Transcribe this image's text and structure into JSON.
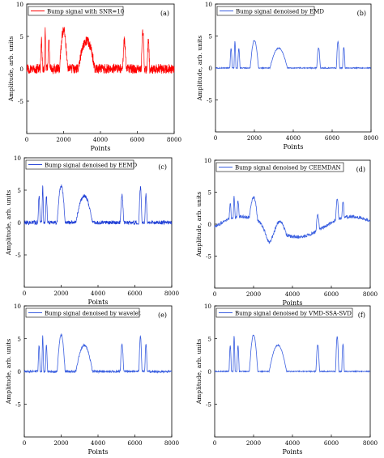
{
  "figure": {
    "panels": [
      {
        "tag": "(a)",
        "legend": "Bump signal with SNR=10",
        "ylabel": "Amplitude, arb. units",
        "xlabel": "Points",
        "color": "#ff0000",
        "variant": "noisy_red"
      },
      {
        "tag": "(b)",
        "legend": "Bump signal denoised by EMD",
        "ylabel": "Amplitude, arb. units",
        "xlabel": "Points",
        "color": "#3a5fe0",
        "variant": "emd"
      },
      {
        "tag": "(c)",
        "legend": "Bump signal denoised by EEMD",
        "ylabel": "Amplitude, arb. units",
        "xlabel": "Points",
        "color": "#1f3fd6",
        "variant": "eemd"
      },
      {
        "tag": "(d)",
        "legend": "Bump signal denoised by CEEMDAN",
        "ylabel": "Amplitude, arb. units",
        "xlabel": "Points",
        "color": "#3a5fe0",
        "variant": "ceemdan"
      },
      {
        "tag": "(e)",
        "legend": "Bump signal denoised by wavelet",
        "ylabel": "Amplitude, arb. units",
        "xlabel": "Points",
        "color": "#3a5fe0",
        "variant": "wavelet"
      },
      {
        "tag": "(f)",
        "legend": "Bump signal denoised by VMD-SSA-SVD",
        "ylabel": "Amplitude, arb. units",
        "xlabel": "Points",
        "color": "#3a5fe0",
        "variant": "vmd"
      }
    ]
  },
  "chart_data": [
    {
      "type": "line",
      "xlabel": "Points",
      "ylabel": "Amplitude, arb. units",
      "xlim": [
        0,
        8000
      ],
      "ylim": [
        -10,
        10
      ],
      "xticks": [
        "0",
        "2000",
        "4000",
        "6000",
        "8000"
      ],
      "yticks": [
        "10",
        "5",
        "0",
        "-5"
      ],
      "series": [
        {
          "name": "Bump signal with SNR=10",
          "x": [
            0,
            800,
            1000,
            1200,
            2000,
            3300,
            5300,
            6300,
            6600,
            8000
          ],
          "y": [
            0.2,
            4.2,
            5.8,
            4.2,
            6.0,
            4.2,
            4.4,
            5.7,
            4.5,
            0.2
          ]
        }
      ]
    },
    {
      "type": "line",
      "xlabel": "Points",
      "ylabel": "Amplitude, arb. units",
      "xlim": [
        0,
        8000
      ],
      "ylim": [
        -10,
        10
      ],
      "xticks": [
        "0",
        "2000",
        "4000",
        "6000",
        "8000"
      ],
      "yticks": [
        "10",
        "5",
        "0",
        "-5"
      ],
      "series": [
        {
          "name": "Bump signal denoised by EMD",
          "x": [
            0,
            800,
            1000,
            1200,
            2000,
            3300,
            5300,
            6300,
            6600,
            8000
          ],
          "y": [
            0.0,
            3.8,
            3.5,
            3.4,
            4.0,
            3.0,
            3.3,
            4.7,
            4.0,
            0.0
          ]
        }
      ]
    },
    {
      "type": "line",
      "xlabel": "Points",
      "ylabel": "Amplitude, arb. units",
      "xlim": [
        0,
        8000
      ],
      "ylim": [
        -10,
        10
      ],
      "xticks": [
        "0",
        "2000",
        "4000",
        "6000",
        "8000"
      ],
      "yticks": [
        "10",
        "5",
        "0",
        "-5"
      ],
      "series": [
        {
          "name": "Bump signal denoised by EEMD",
          "x": [
            0,
            800,
            1000,
            1200,
            2000,
            3300,
            5300,
            6300,
            6600,
            8000
          ],
          "y": [
            0.0,
            4.5,
            5.5,
            4.2,
            5.6,
            4.5,
            4.3,
            5.2,
            4.3,
            0.0
          ]
        }
      ]
    },
    {
      "type": "line",
      "xlabel": "Points",
      "ylabel": "Amplitude, arb. units",
      "xlim": [
        0,
        8000
      ],
      "ylim": [
        -10,
        10
      ],
      "xticks": [
        "0",
        "2000",
        "4000",
        "6000",
        "8000"
      ],
      "yticks": [
        "10",
        "5",
        "0",
        "-5"
      ],
      "series": [
        {
          "name": "Bump signal denoised by CEEMDAN",
          "x": [
            0,
            800,
            1000,
            1200,
            2000,
            3000,
            3300,
            5300,
            6300,
            6600,
            8000
          ],
          "y": [
            -0.3,
            3.0,
            5.0,
            2.5,
            3.5,
            -3.0,
            2.0,
            2.3,
            5.3,
            2.5,
            -0.5
          ]
        }
      ]
    },
    {
      "type": "line",
      "xlabel": "Points",
      "ylabel": "Amplitude, arb. units",
      "xlim": [
        0,
        8000
      ],
      "ylim": [
        -10,
        10
      ],
      "xticks": [
        "0",
        "2000",
        "4000",
        "6000",
        "8000"
      ],
      "yticks": [
        "10",
        "5",
        "0",
        "-5"
      ],
      "series": [
        {
          "name": "Bump signal denoised by wavelet",
          "x": [
            0,
            800,
            1000,
            1200,
            2000,
            3300,
            5300,
            6300,
            6600,
            8000
          ],
          "y": [
            0.0,
            4.2,
            5.2,
            3.8,
            5.5,
            4.2,
            4.4,
            5.2,
            4.3,
            0.0
          ]
        }
      ]
    },
    {
      "type": "line",
      "xlabel": "Points",
      "ylabel": "Amplitude, arb. units",
      "xlim": [
        0,
        8000
      ],
      "ylim": [
        -10,
        10
      ],
      "xticks": [
        "0",
        "2000",
        "4000",
        "6000",
        "8000"
      ],
      "yticks": [
        "10",
        "5",
        "0",
        "-5"
      ],
      "series": [
        {
          "name": "Bump signal denoised by VMD-SSA-SVD",
          "x": [
            0,
            800,
            1000,
            1200,
            2000,
            3300,
            5300,
            6300,
            6600,
            8000
          ],
          "y": [
            0.0,
            4.2,
            5.3,
            3.8,
            5.5,
            4.3,
            4.4,
            5.3,
            4.2,
            0.0
          ]
        }
      ]
    }
  ]
}
